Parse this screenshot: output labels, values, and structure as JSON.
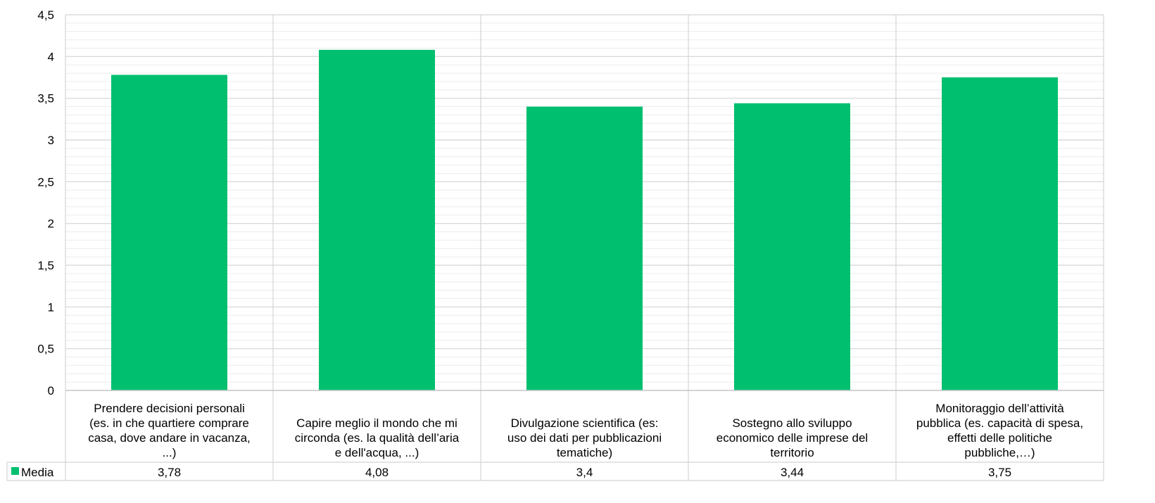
{
  "chart_data": {
    "type": "bar",
    "categories": [
      [
        "Prendere decisioni personali",
        "(es. in che quartiere comprare",
        "casa, dove andare in vacanza,",
        "...)"
      ],
      [
        "Capire meglio il mondo che mi",
        "circonda (es. la qualità dell’aria",
        "e dell'acqua, ...)"
      ],
      [
        "Divulgazione scientifica (es:",
        "uso dei dati per pubblicazioni",
        "tematiche)"
      ],
      [
        "Sostegno allo sviluppo",
        "economico delle imprese del",
        "territorio"
      ],
      [
        "Monitoraggio dell’attività",
        "pubblica (es. capacità di spesa,",
        "effetti delle politiche",
        "pubbliche,…)"
      ]
    ],
    "series": [
      {
        "name": "Media",
        "values": [
          3.78,
          4.08,
          3.4,
          3.44,
          3.75
        ],
        "value_labels": [
          "3,78",
          "4,08",
          "3,4",
          "3,44",
          "3,75"
        ],
        "color": "#00BF6F"
      }
    ],
    "ylim": [
      0,
      4.5
    ],
    "y_ticks": [
      0,
      0.5,
      1,
      1.5,
      2,
      2.5,
      3,
      3.5,
      4,
      4.5
    ],
    "y_tick_labels": [
      "0",
      "0,5",
      "1",
      "1,5",
      "2",
      "2,5",
      "3",
      "3,5",
      "4",
      "4,5"
    ],
    "grid": true,
    "legend": "data-table-left",
    "title": "",
    "xlabel": "",
    "ylabel": ""
  }
}
